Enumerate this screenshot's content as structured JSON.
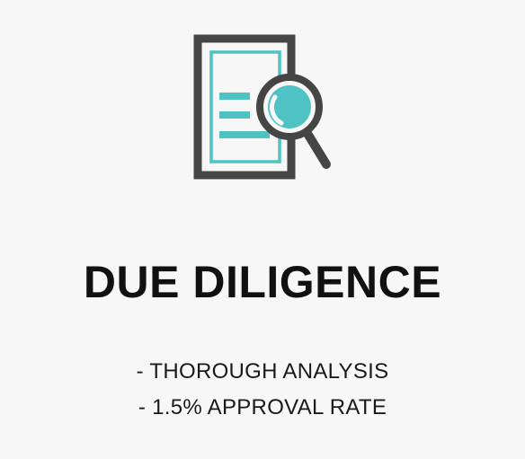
{
  "card": {
    "icon": "document-magnifier-icon",
    "title": "DUE DILIGENCE",
    "points": [
      "- THOROUGH ANALYSIS",
      "- 1.5% APPROVAL RATE"
    ]
  },
  "colors": {
    "background": "#f7f7f7",
    "icon_dark": "#454545",
    "icon_accent": "#4fc2c4",
    "text": "#111111"
  }
}
